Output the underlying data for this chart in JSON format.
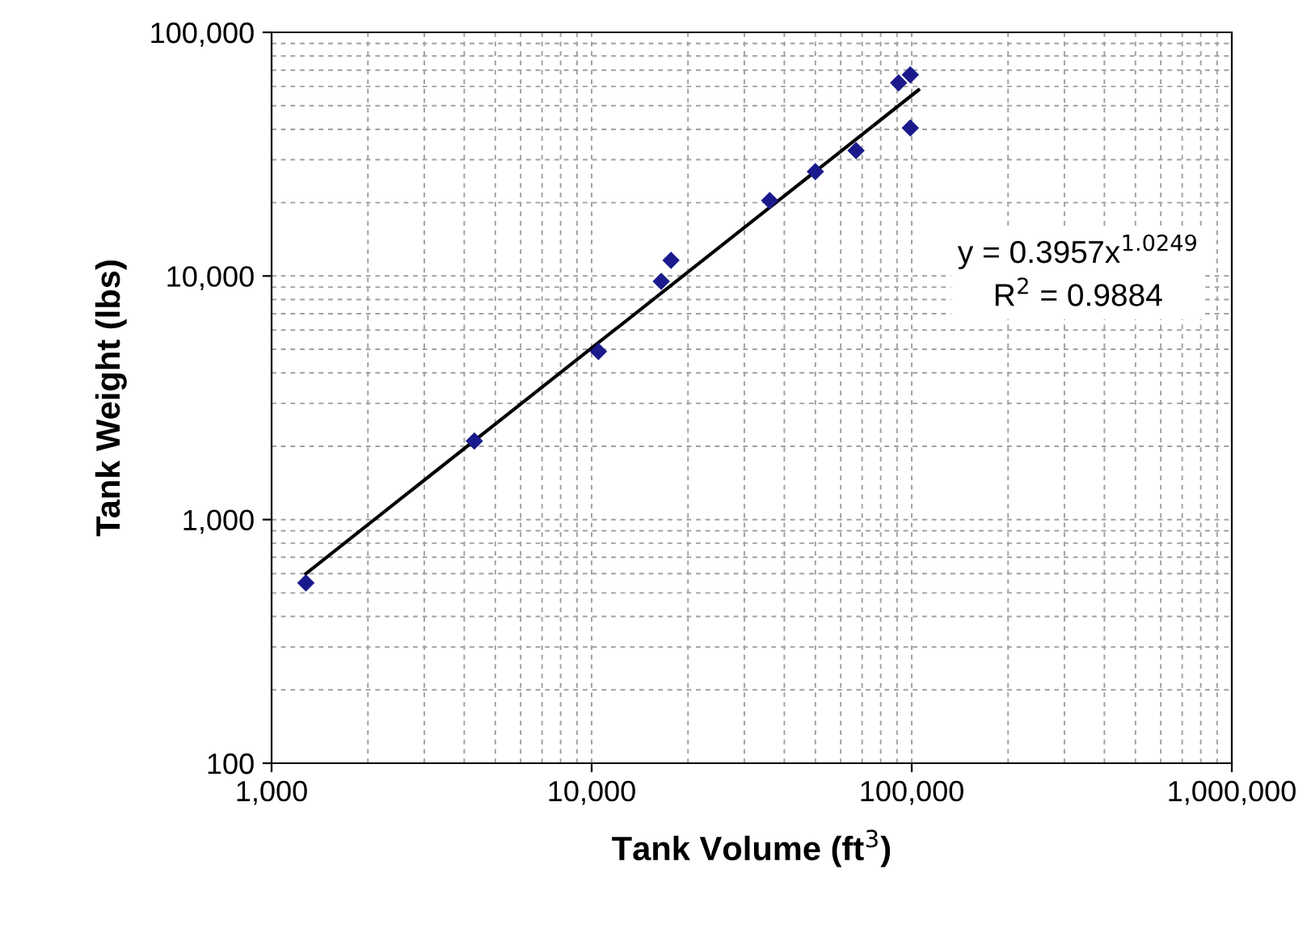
{
  "chart_data": {
    "type": "scatter",
    "xlabel": "Tank Volume (ft$^{3}$)",
    "ylabel": "Tank Weight (lbs)",
    "log": "xy",
    "xlim": [
      1000,
      1000000
    ],
    "xticks": [
      {
        "value": 1000,
        "label": "1,000"
      },
      {
        "value": 10000,
        "label": "10,000"
      },
      {
        "value": 100000,
        "label": "100,000"
      },
      {
        "value": 1000000,
        "label": "1,000,000"
      }
    ],
    "ylim": [
      100,
      100000
    ],
    "yticks": [
      {
        "value": 100,
        "label": "100"
      },
      {
        "value": 1000,
        "label": "1,000"
      },
      {
        "value": 10000,
        "label": "10,000"
      },
      {
        "value": 100000,
        "label": "100,000"
      }
    ],
    "grid": true,
    "marker": "diamond",
    "series": [
      {
        "color": "#1a1a8c",
        "x": [
          1280,
          4300,
          10500,
          16500,
          17700,
          36000,
          50000,
          67000,
          91000,
          99000,
          99000
        ],
        "values": [
          550,
          2100,
          4900,
          9500,
          11600,
          20400,
          26800,
          32700,
          62000,
          67000,
          40500
        ]
      },
      {
        "type": "line",
        "color": "#000000",
        "marker": "none",
        "x": [
          1280,
          105000
        ],
        "values": [
          600,
          58000
        ]
      }
    ],
    "annotations": [
      "y = 0.3957x$^{1.0249}$",
      "R$^{2}$ = 0.9884"
    ]
  }
}
